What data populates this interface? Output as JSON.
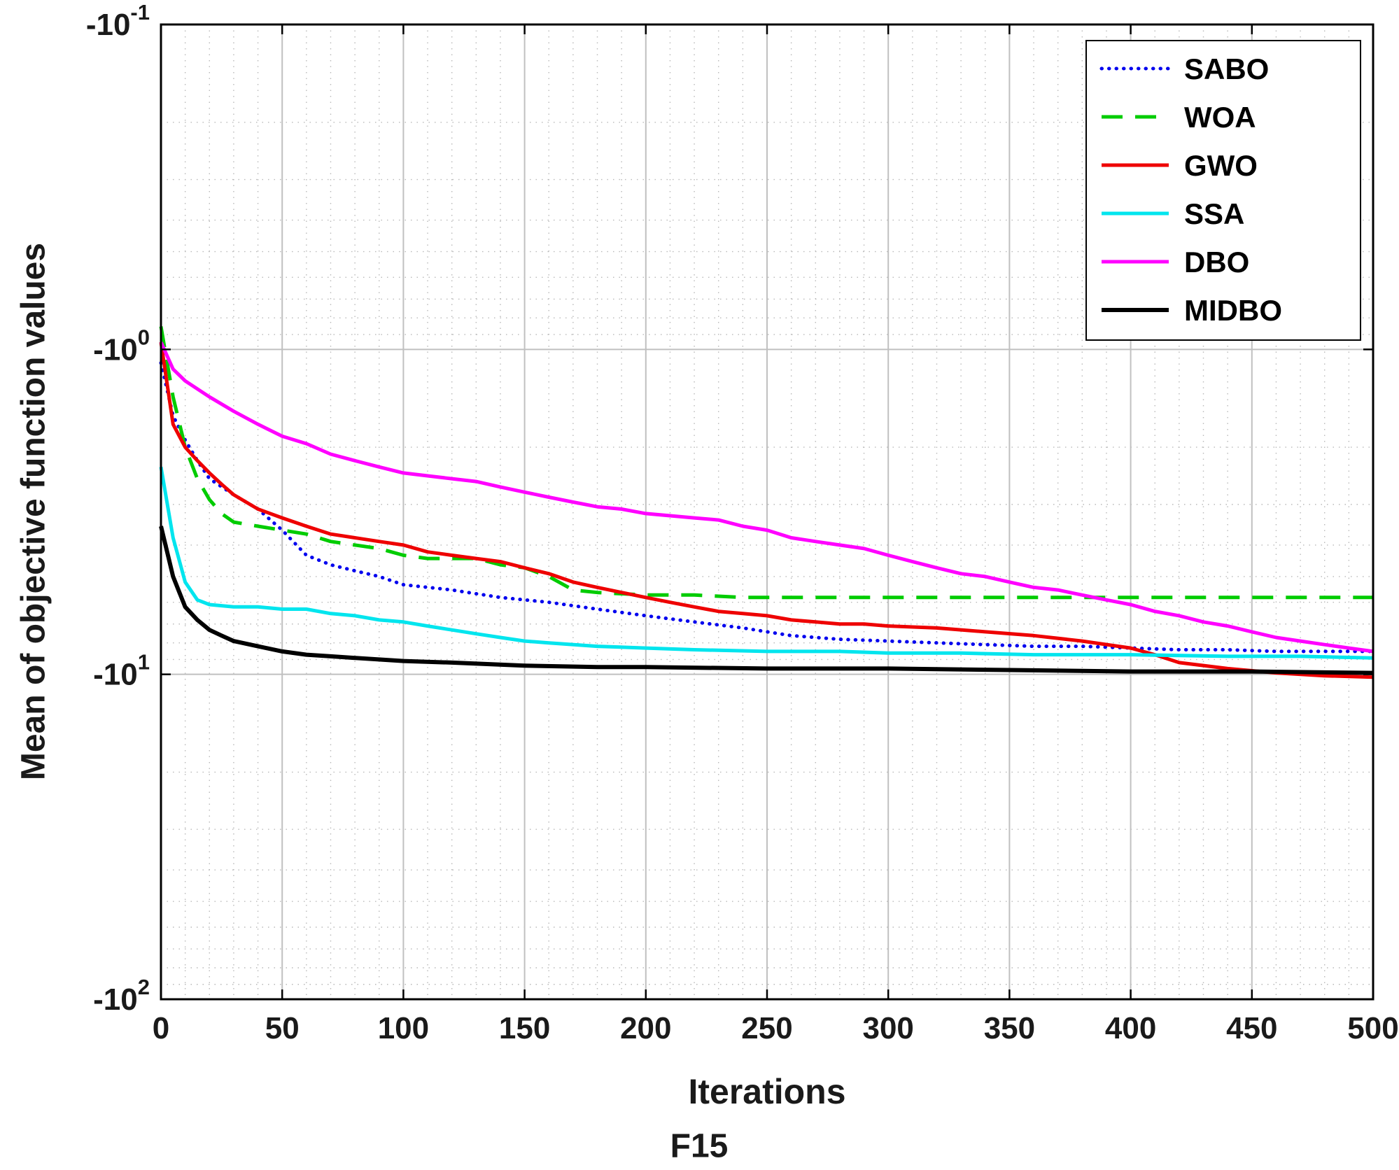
{
  "chart_data": {
    "type": "line",
    "caption": "F15",
    "xlabel": "Iterations",
    "ylabel": "Mean of objective function values",
    "xlim": [
      0,
      500
    ],
    "x_ticks": [
      0,
      50,
      100,
      150,
      200,
      250,
      300,
      350,
      400,
      450,
      500
    ],
    "y_scale": "negative-log10",
    "y_ticks": [
      {
        "mantissa": "-10",
        "exponent": "-1",
        "value": -0.1
      },
      {
        "mantissa": "-10",
        "exponent": "0",
        "value": -1
      },
      {
        "mantissa": "-10",
        "exponent": "1",
        "value": -10
      },
      {
        "mantissa": "-10",
        "exponent": "2",
        "value": -100
      }
    ],
    "grid": {
      "major": true,
      "minor": true
    },
    "legend_position": "top-right",
    "colors": {
      "major_grid": "#c0c0c0",
      "minor_grid": "#b9b9b9",
      "axis": "#000000",
      "tick_text": "#1a1a1a"
    },
    "series": [
      {
        "name": "SABO",
        "color": "#0000ee",
        "style": "dotted",
        "width": 5,
        "points": [
          [
            0,
            -1.1
          ],
          [
            5,
            -1.6
          ],
          [
            10,
            -1.9
          ],
          [
            15,
            -2.2
          ],
          [
            20,
            -2.5
          ],
          [
            30,
            -2.8
          ],
          [
            40,
            -3.1
          ],
          [
            50,
            -3.6
          ],
          [
            60,
            -4.3
          ],
          [
            70,
            -4.6
          ],
          [
            80,
            -4.8
          ],
          [
            90,
            -5.0
          ],
          [
            100,
            -5.3
          ],
          [
            120,
            -5.5
          ],
          [
            140,
            -5.8
          ],
          [
            160,
            -6.0
          ],
          [
            180,
            -6.3
          ],
          [
            200,
            -6.6
          ],
          [
            220,
            -6.9
          ],
          [
            240,
            -7.2
          ],
          [
            260,
            -7.6
          ],
          [
            280,
            -7.8
          ],
          [
            300,
            -7.9
          ],
          [
            320,
            -8.0
          ],
          [
            340,
            -8.1
          ],
          [
            360,
            -8.2
          ],
          [
            380,
            -8.2
          ],
          [
            400,
            -8.3
          ],
          [
            420,
            -8.4
          ],
          [
            440,
            -8.4
          ],
          [
            460,
            -8.5
          ],
          [
            480,
            -8.5
          ],
          [
            500,
            -8.5
          ]
        ]
      },
      {
        "name": "WOA",
        "color": "#00cc00",
        "style": "dashed",
        "width": 5,
        "points": [
          [
            0,
            -0.85
          ],
          [
            5,
            -1.4
          ],
          [
            10,
            -2.0
          ],
          [
            15,
            -2.5
          ],
          [
            20,
            -2.9
          ],
          [
            25,
            -3.2
          ],
          [
            30,
            -3.4
          ],
          [
            40,
            -3.5
          ],
          [
            50,
            -3.6
          ],
          [
            60,
            -3.7
          ],
          [
            70,
            -3.9
          ],
          [
            80,
            -4.0
          ],
          [
            90,
            -4.1
          ],
          [
            100,
            -4.3
          ],
          [
            110,
            -4.4
          ],
          [
            120,
            -4.4
          ],
          [
            130,
            -4.4
          ],
          [
            140,
            -4.6
          ],
          [
            150,
            -4.7
          ],
          [
            160,
            -5.0
          ],
          [
            170,
            -5.5
          ],
          [
            180,
            -5.6
          ],
          [
            200,
            -5.7
          ],
          [
            220,
            -5.7
          ],
          [
            240,
            -5.8
          ],
          [
            260,
            -5.8
          ],
          [
            300,
            -5.8
          ],
          [
            350,
            -5.8
          ],
          [
            400,
            -5.8
          ],
          [
            450,
            -5.8
          ],
          [
            500,
            -5.8
          ]
        ]
      },
      {
        "name": "GWO",
        "color": "#ee0000",
        "style": "solid",
        "width": 5,
        "points": [
          [
            0,
            -0.95
          ],
          [
            5,
            -1.7
          ],
          [
            10,
            -2.0
          ],
          [
            15,
            -2.2
          ],
          [
            20,
            -2.4
          ],
          [
            25,
            -2.6
          ],
          [
            30,
            -2.8
          ],
          [
            40,
            -3.1
          ],
          [
            50,
            -3.3
          ],
          [
            60,
            -3.5
          ],
          [
            70,
            -3.7
          ],
          [
            80,
            -3.8
          ],
          [
            90,
            -3.9
          ],
          [
            100,
            -4.0
          ],
          [
            110,
            -4.2
          ],
          [
            120,
            -4.3
          ],
          [
            130,
            -4.4
          ],
          [
            140,
            -4.5
          ],
          [
            150,
            -4.7
          ],
          [
            160,
            -4.9
          ],
          [
            170,
            -5.2
          ],
          [
            180,
            -5.4
          ],
          [
            190,
            -5.6
          ],
          [
            200,
            -5.8
          ],
          [
            210,
            -6.0
          ],
          [
            220,
            -6.2
          ],
          [
            230,
            -6.4
          ],
          [
            240,
            -6.5
          ],
          [
            250,
            -6.6
          ],
          [
            260,
            -6.8
          ],
          [
            270,
            -6.9
          ],
          [
            280,
            -7.0
          ],
          [
            290,
            -7.0
          ],
          [
            300,
            -7.1
          ],
          [
            320,
            -7.2
          ],
          [
            340,
            -7.4
          ],
          [
            360,
            -7.6
          ],
          [
            380,
            -7.9
          ],
          [
            400,
            -8.3
          ],
          [
            410,
            -8.7
          ],
          [
            420,
            -9.2
          ],
          [
            440,
            -9.6
          ],
          [
            460,
            -9.9
          ],
          [
            480,
            -10.1
          ],
          [
            500,
            -10.2
          ]
        ]
      },
      {
        "name": "SSA",
        "color": "#00e5ee",
        "style": "solid",
        "width": 5,
        "points": [
          [
            0,
            -2.3
          ],
          [
            5,
            -3.8
          ],
          [
            10,
            -5.2
          ],
          [
            15,
            -5.9
          ],
          [
            20,
            -6.1
          ],
          [
            30,
            -6.2
          ],
          [
            40,
            -6.2
          ],
          [
            50,
            -6.3
          ],
          [
            60,
            -6.3
          ],
          [
            70,
            -6.5
          ],
          [
            80,
            -6.6
          ],
          [
            90,
            -6.8
          ],
          [
            100,
            -6.9
          ],
          [
            110,
            -7.1
          ],
          [
            120,
            -7.3
          ],
          [
            130,
            -7.5
          ],
          [
            140,
            -7.7
          ],
          [
            150,
            -7.9
          ],
          [
            160,
            -8.0
          ],
          [
            180,
            -8.2
          ],
          [
            200,
            -8.3
          ],
          [
            220,
            -8.4
          ],
          [
            250,
            -8.5
          ],
          [
            280,
            -8.5
          ],
          [
            300,
            -8.6
          ],
          [
            330,
            -8.6
          ],
          [
            360,
            -8.7
          ],
          [
            400,
            -8.7
          ],
          [
            440,
            -8.8
          ],
          [
            470,
            -8.8
          ],
          [
            500,
            -8.9
          ]
        ]
      },
      {
        "name": "DBO",
        "color": "#ff00ff",
        "style": "solid",
        "width": 5,
        "points": [
          [
            0,
            -0.95
          ],
          [
            5,
            -1.15
          ],
          [
            10,
            -1.25
          ],
          [
            20,
            -1.4
          ],
          [
            30,
            -1.55
          ],
          [
            40,
            -1.7
          ],
          [
            50,
            -1.85
          ],
          [
            60,
            -1.95
          ],
          [
            70,
            -2.1
          ],
          [
            80,
            -2.2
          ],
          [
            90,
            -2.3
          ],
          [
            100,
            -2.4
          ],
          [
            110,
            -2.45
          ],
          [
            120,
            -2.5
          ],
          [
            130,
            -2.55
          ],
          [
            140,
            -2.65
          ],
          [
            150,
            -2.75
          ],
          [
            160,
            -2.85
          ],
          [
            170,
            -2.95
          ],
          [
            180,
            -3.05
          ],
          [
            190,
            -3.1
          ],
          [
            200,
            -3.2
          ],
          [
            210,
            -3.25
          ],
          [
            220,
            -3.3
          ],
          [
            230,
            -3.35
          ],
          [
            240,
            -3.5
          ],
          [
            250,
            -3.6
          ],
          [
            260,
            -3.8
          ],
          [
            270,
            -3.9
          ],
          [
            280,
            -4.0
          ],
          [
            290,
            -4.1
          ],
          [
            300,
            -4.3
          ],
          [
            310,
            -4.5
          ],
          [
            320,
            -4.7
          ],
          [
            330,
            -4.9
          ],
          [
            340,
            -5.0
          ],
          [
            350,
            -5.2
          ],
          [
            360,
            -5.4
          ],
          [
            370,
            -5.5
          ],
          [
            380,
            -5.7
          ],
          [
            390,
            -5.9
          ],
          [
            400,
            -6.1
          ],
          [
            410,
            -6.4
          ],
          [
            420,
            -6.6
          ],
          [
            430,
            -6.9
          ],
          [
            440,
            -7.1
          ],
          [
            450,
            -7.4
          ],
          [
            460,
            -7.7
          ],
          [
            470,
            -7.9
          ],
          [
            480,
            -8.1
          ],
          [
            490,
            -8.3
          ],
          [
            500,
            -8.5
          ]
        ]
      },
      {
        "name": "MIDBO",
        "color": "#000000",
        "style": "solid",
        "width": 6,
        "points": [
          [
            0,
            -3.5
          ],
          [
            5,
            -5.0
          ],
          [
            10,
            -6.2
          ],
          [
            15,
            -6.8
          ],
          [
            20,
            -7.3
          ],
          [
            25,
            -7.6
          ],
          [
            30,
            -7.9
          ],
          [
            40,
            -8.2
          ],
          [
            50,
            -8.5
          ],
          [
            60,
            -8.7
          ],
          [
            70,
            -8.8
          ],
          [
            80,
            -8.9
          ],
          [
            100,
            -9.1
          ],
          [
            120,
            -9.2
          ],
          [
            150,
            -9.4
          ],
          [
            180,
            -9.5
          ],
          [
            200,
            -9.5
          ],
          [
            250,
            -9.6
          ],
          [
            300,
            -9.6
          ],
          [
            350,
            -9.7
          ],
          [
            400,
            -9.8
          ],
          [
            450,
            -9.8
          ],
          [
            500,
            -9.9
          ]
        ]
      }
    ]
  }
}
